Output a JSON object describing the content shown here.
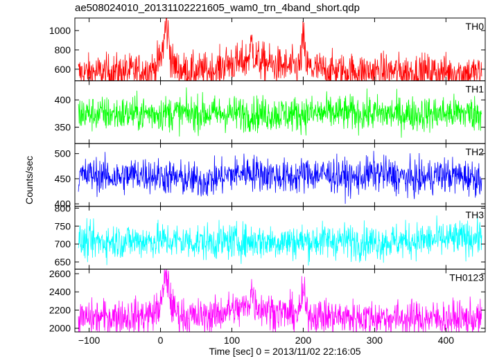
{
  "chart_data": {
    "type": "line",
    "title": "ae508024010_20131102221605_wam0_trn_4band_short.qdp",
    "xlabel": "Time [sec] 0 = 2013/11/02 22:16:05",
    "ylabel": "Counts/sec",
    "xlim": [
      -120,
      455
    ],
    "x_ticks": [
      -100,
      0,
      100,
      200,
      300,
      400
    ],
    "x_tick_labels": [
      "−100",
      "0",
      "100",
      "200",
      "300",
      "400"
    ],
    "panels": [
      {
        "name": "TH0",
        "color": "#ff0000",
        "ylim": [
          480,
          1130
        ],
        "y_ticks": [
          600,
          800,
          1000
        ],
        "y_tick_labels": [
          "600",
          "800",
          "1000"
        ],
        "x": [
          -115,
          -100,
          -80,
          -60,
          -40,
          -20,
          -10,
          0,
          4,
          8,
          12,
          16,
          25,
          40,
          60,
          80,
          90,
          100,
          110,
          120,
          125,
          128,
          132,
          140,
          150,
          160,
          180,
          195,
          200,
          204,
          210,
          230,
          260,
          300,
          340,
          380,
          420,
          450
        ],
        "values": [
          560,
          565,
          570,
          575,
          575,
          590,
          600,
          700,
          850,
          1080,
          880,
          660,
          600,
          575,
          580,
          600,
          650,
          670,
          660,
          690,
          760,
          880,
          720,
          680,
          660,
          640,
          620,
          630,
          920,
          650,
          610,
          590,
          580,
          580,
          575,
          575,
          570,
          560
        ]
      },
      {
        "name": "TH1",
        "color": "#00ff00",
        "ylim": [
          320,
          435
        ],
        "y_ticks": [
          350,
          400
        ],
        "y_tick_labels": [
          "350",
          "400"
        ],
        "x": [
          -115,
          -60,
          0,
          60,
          120,
          180,
          240,
          300,
          360,
          420,
          450
        ],
        "values": [
          375,
          374,
          376,
          375,
          375,
          374,
          376,
          375,
          374,
          376,
          375
        ]
      },
      {
        "name": "TH2",
        "color": "#0000ff",
        "ylim": [
          395,
          520
        ],
        "y_ticks": [
          400,
          450,
          500
        ],
        "y_tick_labels": [
          "400",
          "450",
          "500"
        ],
        "x": [
          -115,
          -90,
          -60,
          -30,
          0,
          30,
          60,
          90,
          120,
          150,
          180,
          210,
          240,
          270,
          300,
          330,
          360,
          390,
          420,
          450
        ],
        "values": [
          455,
          458,
          452,
          460,
          455,
          450,
          445,
          455,
          465,
          458,
          452,
          460,
          458,
          450,
          462,
          455,
          448,
          458,
          455,
          452
        ]
      },
      {
        "name": "TH3",
        "color": "#00ffff",
        "ylim": [
          630,
          805
        ],
        "y_ticks": [
          650,
          700,
          750,
          800
        ],
        "y_tick_labels": [
          "650",
          "700",
          "750",
          "800"
        ],
        "x": [
          -115,
          -60,
          0,
          60,
          120,
          180,
          240,
          300,
          360,
          420,
          450
        ],
        "values": [
          705,
          708,
          710,
          705,
          708,
          706,
          710,
          705,
          710,
          715,
          720
        ]
      },
      {
        "name": "TH0123",
        "color": "#ff00ff",
        "ylim": [
          1960,
          2650
        ],
        "y_ticks": [
          2000,
          2200,
          2400,
          2600
        ],
        "y_tick_labels": [
          "2000",
          "2200",
          "2400",
          "2600"
        ],
        "x": [
          -115,
          -100,
          -80,
          -60,
          -40,
          -20,
          -10,
          0,
          4,
          8,
          12,
          16,
          25,
          40,
          60,
          80,
          90,
          100,
          110,
          120,
          125,
          128,
          132,
          140,
          150,
          160,
          180,
          195,
          200,
          204,
          210,
          230,
          260,
          300,
          340,
          380,
          420,
          450
        ],
        "values": [
          2100,
          2110,
          2120,
          2130,
          2130,
          2140,
          2160,
          2250,
          2400,
          2600,
          2420,
          2230,
          2160,
          2120,
          2130,
          2150,
          2190,
          2210,
          2200,
          2240,
          2310,
          2440,
          2270,
          2230,
          2210,
          2180,
          2160,
          2170,
          2430,
          2190,
          2150,
          2130,
          2120,
          2120,
          2110,
          2110,
          2105,
          2100
        ]
      }
    ],
    "grid": false,
    "legend": "none"
  }
}
